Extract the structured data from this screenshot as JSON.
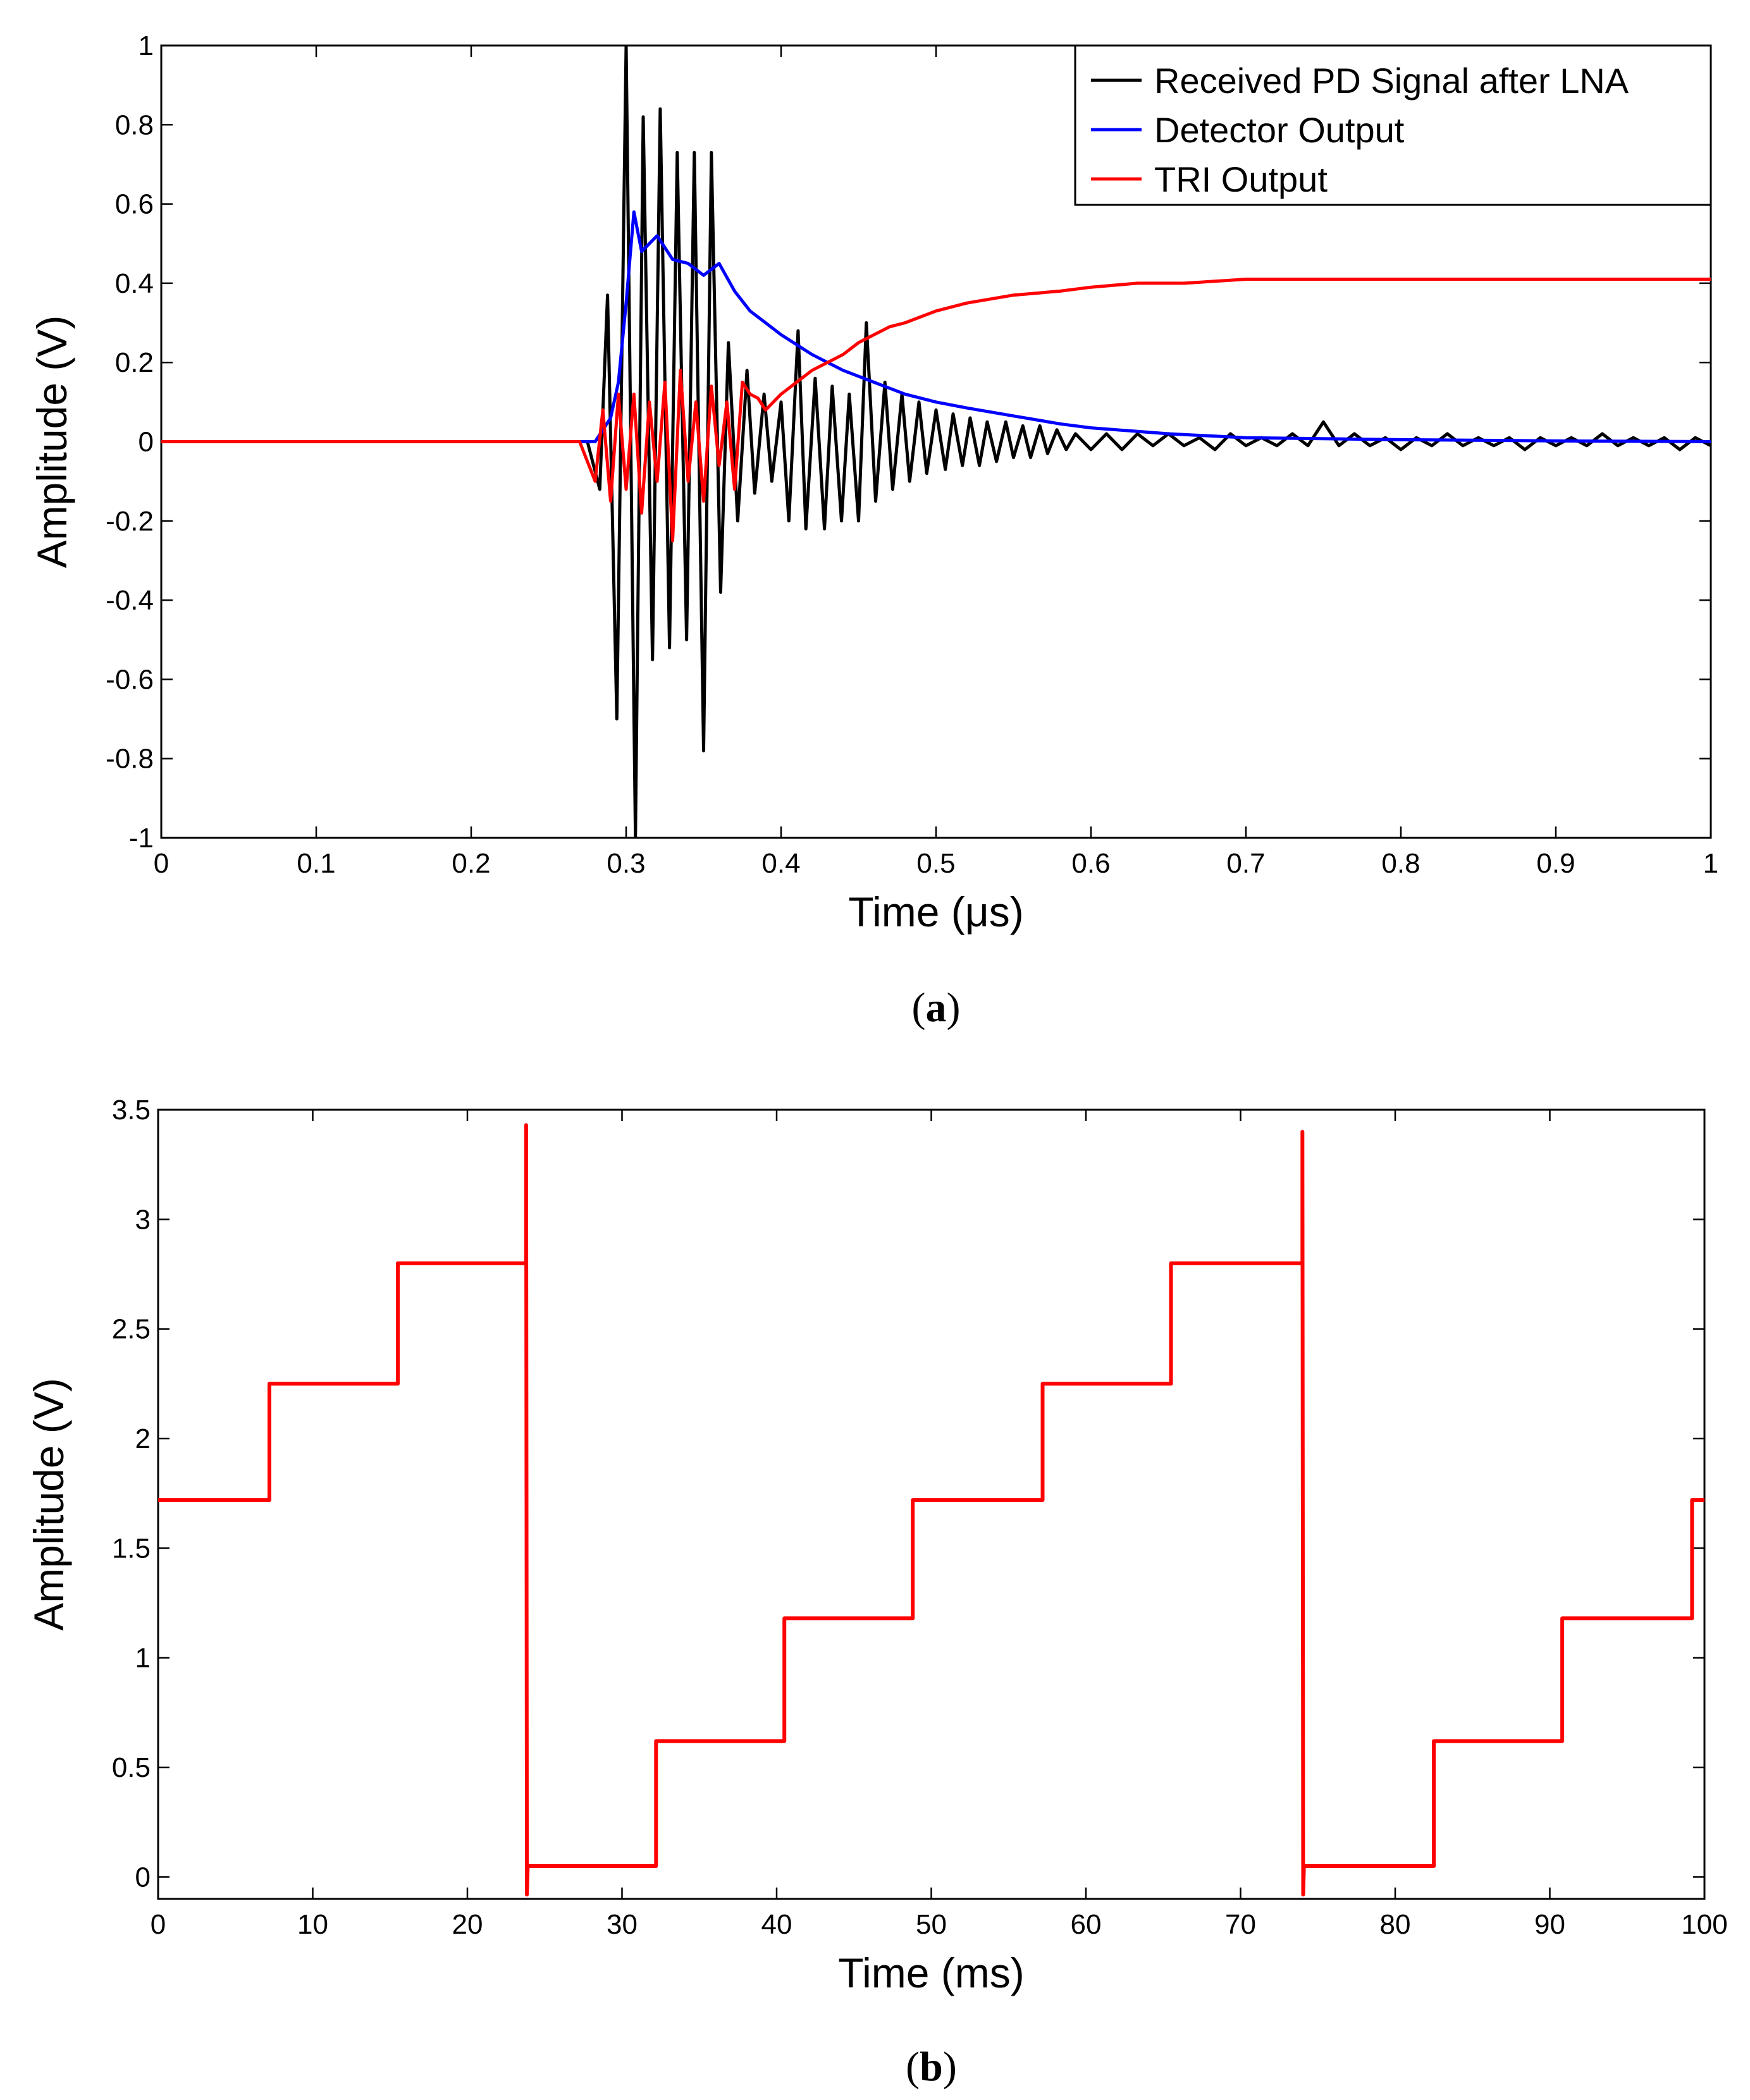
{
  "chart_data": [
    {
      "type": "line",
      "caption": "(a)",
      "caption_prefix": "(",
      "caption_letter": "a",
      "caption_suffix": ")",
      "xlabel": "Time (μs)",
      "ylabel": "Amplitude (V)",
      "xlim": [
        0,
        1
      ],
      "ylim": [
        -1,
        1
      ],
      "xticks": [
        "0",
        "0.1",
        "0.2",
        "0.3",
        "0.4",
        "0.5",
        "0.6",
        "0.7",
        "0.8",
        "0.9",
        "1"
      ],
      "yticks": [
        "-1",
        "-0.8",
        "-0.6",
        "-0.4",
        "-0.2",
        "0",
        "0.2",
        "0.4",
        "0.6",
        "0.8",
        "1"
      ],
      "grid": false,
      "legend_position": "top-right",
      "series": [
        {
          "name": "Received PD Signal after LNA",
          "color": "#000000",
          "x": [
            0,
            0.275,
            0.283,
            0.288,
            0.294,
            0.3,
            0.306,
            0.311,
            0.317,
            0.322,
            0.328,
            0.333,
            0.339,
            0.344,
            0.35,
            0.355,
            0.361,
            0.366,
            0.372,
            0.378,
            0.383,
            0.389,
            0.394,
            0.4,
            0.405,
            0.411,
            0.416,
            0.422,
            0.428,
            0.433,
            0.439,
            0.444,
            0.45,
            0.455,
            0.461,
            0.467,
            0.472,
            0.478,
            0.483,
            0.489,
            0.494,
            0.5,
            0.506,
            0.511,
            0.517,
            0.522,
            0.528,
            0.533,
            0.539,
            0.545,
            0.55,
            0.556,
            0.561,
            0.567,
            0.572,
            0.578,
            0.584,
            0.59,
            0.6,
            0.61,
            0.62,
            0.63,
            0.64,
            0.65,
            0.66,
            0.67,
            0.68,
            0.69,
            0.7,
            0.71,
            0.72,
            0.73,
            0.74,
            0.75,
            0.76,
            0.77,
            0.78,
            0.79,
            0.8,
            0.81,
            0.82,
            0.83,
            0.84,
            0.85,
            0.86,
            0.87,
            0.88,
            0.89,
            0.9,
            0.91,
            0.92,
            0.93,
            0.94,
            0.95,
            0.96,
            0.97,
            0.98,
            0.99,
            1
          ],
          "values": [
            0,
            0,
            -0.12,
            0.37,
            -0.7,
            1.0,
            -1.0,
            0.82,
            -0.55,
            0.84,
            -0.52,
            0.73,
            -0.5,
            0.73,
            -0.78,
            0.73,
            -0.38,
            0.25,
            -0.2,
            0.18,
            -0.13,
            0.12,
            -0.1,
            0.1,
            -0.2,
            0.28,
            -0.22,
            0.16,
            -0.22,
            0.14,
            -0.2,
            0.12,
            -0.2,
            0.3,
            -0.15,
            0.15,
            -0.12,
            0.12,
            -0.1,
            0.1,
            -0.08,
            0.08,
            -0.07,
            0.07,
            -0.06,
            0.06,
            -0.06,
            0.05,
            -0.05,
            0.05,
            -0.04,
            0.04,
            -0.04,
            0.04,
            -0.03,
            0.03,
            -0.02,
            0.02,
            -0.02,
            0.02,
            -0.02,
            0.02,
            -0.01,
            0.02,
            -0.01,
            0.01,
            -0.02,
            0.02,
            -0.01,
            0.01,
            -0.01,
            0.02,
            -0.01,
            0.05,
            -0.01,
            0.02,
            -0.01,
            0.01,
            -0.02,
            0.01,
            -0.01,
            0.02,
            -0.01,
            0.01,
            -0.01,
            0.01,
            -0.02,
            0.01,
            -0.01,
            0.01,
            -0.01,
            0.02,
            -0.01,
            0.01,
            -0.01,
            0.01,
            -0.02,
            0.01,
            -0.01
          ]
        },
        {
          "name": "Detector Output",
          "color": "#0000ff",
          "x": [
            0,
            0.28,
            0.29,
            0.295,
            0.3,
            0.305,
            0.31,
            0.32,
            0.33,
            0.34,
            0.35,
            0.36,
            0.37,
            0.38,
            0.39,
            0.4,
            0.42,
            0.44,
            0.46,
            0.48,
            0.5,
            0.52,
            0.55,
            0.58,
            0.6,
            0.65,
            0.7,
            0.8,
            0.9,
            1
          ],
          "values": [
            0,
            0,
            0.06,
            0.15,
            0.35,
            0.58,
            0.48,
            0.52,
            0.46,
            0.45,
            0.42,
            0.45,
            0.38,
            0.33,
            0.3,
            0.27,
            0.22,
            0.18,
            0.15,
            0.12,
            0.1,
            0.085,
            0.065,
            0.045,
            0.035,
            0.02,
            0.01,
            0.005,
            0.002,
            0
          ]
        },
        {
          "name": "TRI Output",
          "color": "#ff0000",
          "x": [
            0,
            0.27,
            0.28,
            0.285,
            0.29,
            0.295,
            0.3,
            0.305,
            0.31,
            0.315,
            0.32,
            0.325,
            0.33,
            0.335,
            0.34,
            0.345,
            0.35,
            0.355,
            0.36,
            0.365,
            0.37,
            0.375,
            0.38,
            0.385,
            0.39,
            0.4,
            0.41,
            0.42,
            0.43,
            0.44,
            0.45,
            0.46,
            0.47,
            0.48,
            0.5,
            0.52,
            0.55,
            0.58,
            0.6,
            0.63,
            0.66,
            0.7,
            0.75,
            0.8,
            0.9,
            1
          ],
          "values": [
            0,
            0,
            -0.1,
            0.08,
            -0.15,
            0.12,
            -0.12,
            0.12,
            -0.18,
            0.1,
            -0.1,
            0.15,
            -0.25,
            0.18,
            -0.1,
            0.1,
            -0.15,
            0.14,
            -0.06,
            0.1,
            -0.12,
            0.15,
            0.12,
            0.11,
            0.08,
            0.12,
            0.15,
            0.18,
            0.2,
            0.22,
            0.25,
            0.27,
            0.29,
            0.3,
            0.33,
            0.35,
            0.37,
            0.38,
            0.39,
            0.4,
            0.4,
            0.41,
            0.41,
            0.41,
            0.41,
            0.41
          ]
        }
      ]
    },
    {
      "type": "line",
      "caption": "(b)",
      "caption_prefix": "(",
      "caption_letter": "b",
      "caption_suffix": ")",
      "xlabel": "Time (ms)",
      "ylabel": "Amplitude (V)",
      "xlim": [
        0,
        100
      ],
      "ylim": [
        -0.1,
        3.5
      ],
      "xticks": [
        "0",
        "10",
        "20",
        "30",
        "40",
        "50",
        "60",
        "70",
        "80",
        "90",
        "100"
      ],
      "yticks": [
        "0",
        "0.5",
        "1",
        "1.5",
        "2",
        "2.5",
        "3",
        "3.5"
      ],
      "grid": false,
      "series": [
        {
          "name": "TRI Output",
          "color": "#ff0000",
          "x": [
            0,
            7.2,
            7.2,
            15.5,
            15.5,
            23.8,
            23.8,
            23.85,
            23.9,
            32.2,
            32.2,
            40.5,
            40.5,
            48.8,
            48.8,
            57.2,
            57.2,
            65.5,
            65.5,
            74.0,
            74.0,
            74.05,
            74.1,
            82.5,
            82.5,
            90.8,
            90.8,
            99.2,
            99.2,
            100
          ],
          "values": [
            1.72,
            1.72,
            2.25,
            2.25,
            2.8,
            2.8,
            3.43,
            -0.08,
            0.05,
            0.05,
            0.62,
            0.62,
            1.18,
            1.18,
            1.72,
            1.72,
            2.25,
            2.25,
            2.8,
            2.8,
            3.4,
            -0.08,
            0.05,
            0.05,
            0.62,
            0.62,
            1.18,
            1.18,
            1.72,
            1.72
          ]
        }
      ]
    }
  ]
}
